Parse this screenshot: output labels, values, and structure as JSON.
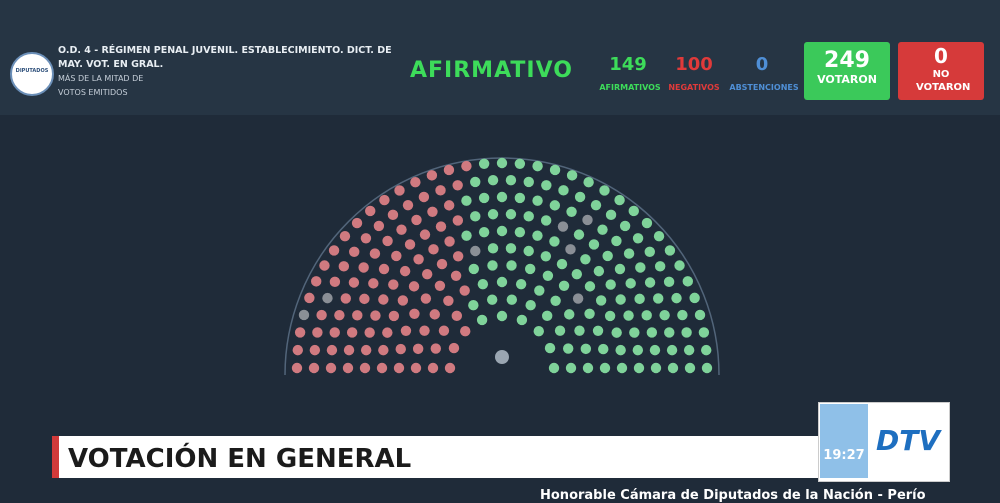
{
  "header": {
    "logo": "DIPUTADOS",
    "title_lines": [
      "O.D. 4 - RÉGIMEN PENAL JUVENIL. ESTABLECIMIENTO. DICT. DE",
      "MAY. VOT. EN GRAL."
    ],
    "rule_lines": [
      "MÁS DE LA MITAD DE",
      "VOTOS EMITIDOS"
    ],
    "result": "AFIRMATIVO"
  },
  "counts": [
    {
      "value": 149,
      "label": "AFIRMATIVOS"
    },
    {
      "value": 100,
      "label": "NEGATIVOS"
    },
    {
      "value": 0,
      "label": "ABSTENCIONES"
    }
  ],
  "boxes": [
    {
      "value": 249,
      "label": "VOTARON"
    },
    {
      "value": 0,
      "label": "NO VOTARON"
    }
  ],
  "banner": {
    "title": "VOTACIÓN EN GENERAL",
    "time": "19:27",
    "channel": "DTV",
    "ticker": "Honorable Cámara de Diputados de la Nación - Perío"
  }
}
